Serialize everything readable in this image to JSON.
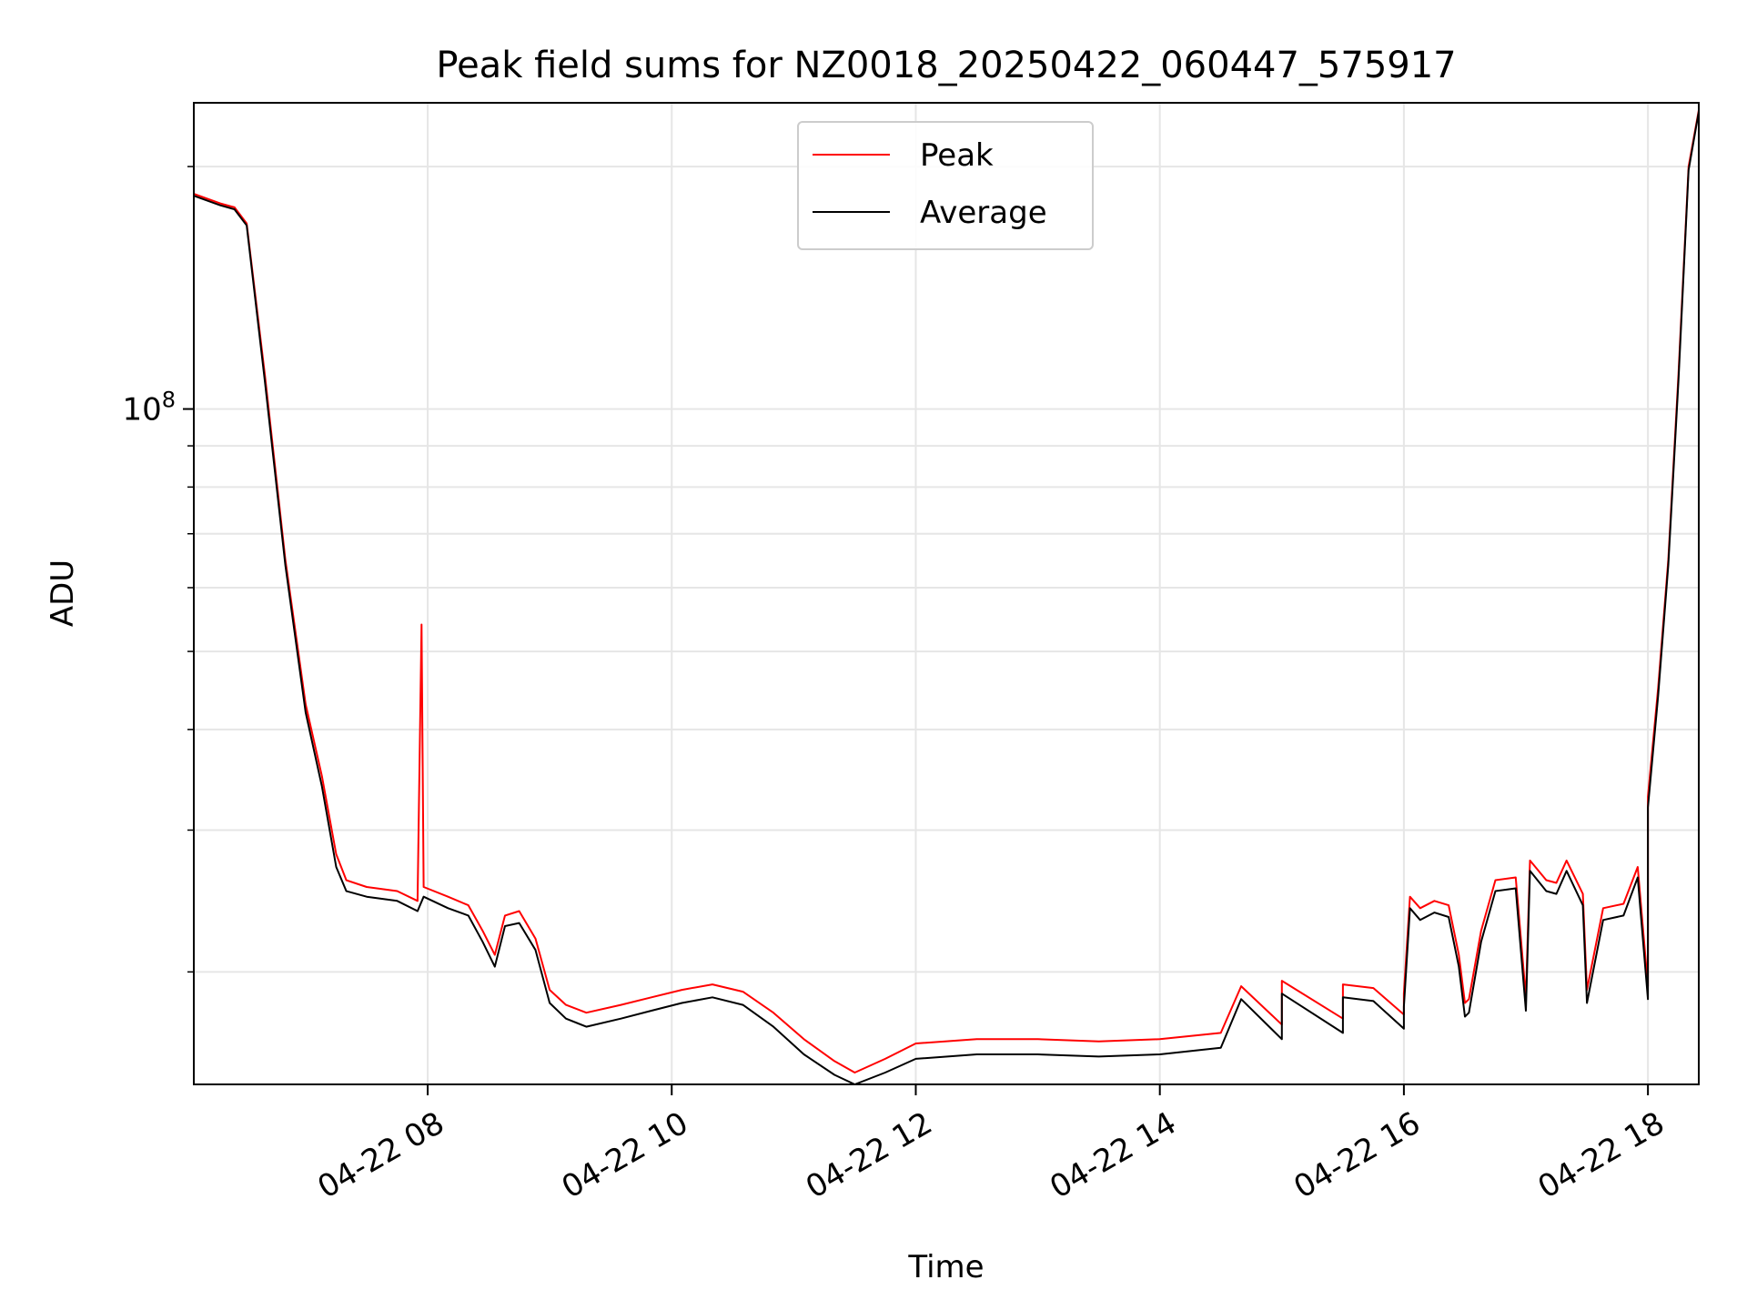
{
  "chart_data": {
    "type": "line",
    "title": "Peak field sums for NZ0018_20250422_060447_575917",
    "xlabel": "Time",
    "ylabel": "ADU",
    "y_scale": "log",
    "ylim": [
      14500000,
      240000000
    ],
    "xlim": [
      "2025-04-22 06:05",
      "2025-04-22 18:25"
    ],
    "x_ticks": [
      {
        "t": "2025-04-22 08:00",
        "label": "04-22 08"
      },
      {
        "t": "2025-04-22 10:00",
        "label": "04-22 10"
      },
      {
        "t": "2025-04-22 12:00",
        "label": "04-22 12"
      },
      {
        "t": "2025-04-22 14:00",
        "label": "04-22 14"
      },
      {
        "t": "2025-04-22 16:00",
        "label": "04-22 16"
      },
      {
        "t": "2025-04-22 18:00",
        "label": "04-22 18"
      }
    ],
    "y_major_tick": {
      "value": 100000000,
      "label_base": "10",
      "label_exp": "8"
    },
    "y_minor_ticks": [
      20000000,
      30000000,
      40000000,
      50000000,
      60000000,
      70000000,
      80000000,
      90000000,
      200000000
    ],
    "grid": true,
    "legend_position": "top-center",
    "legend": [
      "Peak",
      "Average"
    ],
    "series": [
      {
        "name": "Peak",
        "color": "#ff0000",
        "points": [
          [
            "2025-04-22 06:05",
            185000000
          ],
          [
            "2025-04-22 06:18",
            180000000
          ],
          [
            "2025-04-22 06:25",
            178000000
          ],
          [
            "2025-04-22 06:31",
            170000000
          ],
          [
            "2025-04-22 06:40",
            110000000
          ],
          [
            "2025-04-22 06:50",
            65000000
          ],
          [
            "2025-04-22 07:00",
            43000000
          ],
          [
            "2025-04-22 07:08",
            35000000
          ],
          [
            "2025-04-22 07:15",
            28000000
          ],
          [
            "2025-04-22 07:20",
            26000000
          ],
          [
            "2025-04-22 07:30",
            25500000
          ],
          [
            "2025-04-22 07:45",
            25200000
          ],
          [
            "2025-04-22 07:55",
            24500000
          ],
          [
            "2025-04-22 07:57",
            54000000
          ],
          [
            "2025-04-22 07:58",
            25500000
          ],
          [
            "2025-04-22 08:10",
            24800000
          ],
          [
            "2025-04-22 08:20",
            24200000
          ],
          [
            "2025-04-22 08:27",
            22500000
          ],
          [
            "2025-04-22 08:33",
            21000000
          ],
          [
            "2025-04-22 08:38",
            23500000
          ],
          [
            "2025-04-22 08:45",
            23800000
          ],
          [
            "2025-04-22 08:53",
            22000000
          ],
          [
            "2025-04-22 09:00",
            19000000
          ],
          [
            "2025-04-22 09:08",
            18200000
          ],
          [
            "2025-04-22 09:18",
            17800000
          ],
          [
            "2025-04-22 09:35",
            18200000
          ],
          [
            "2025-04-22 09:50",
            18600000
          ],
          [
            "2025-04-22 10:05",
            19000000
          ],
          [
            "2025-04-22 10:20",
            19300000
          ],
          [
            "2025-04-22 10:35",
            18900000
          ],
          [
            "2025-04-22 10:50",
            17800000
          ],
          [
            "2025-04-22 11:05",
            16500000
          ],
          [
            "2025-04-22 11:20",
            15500000
          ],
          [
            "2025-04-22 11:30",
            15000000
          ],
          [
            "2025-04-22 11:45",
            15600000
          ],
          [
            "2025-04-22 12:00",
            16300000
          ],
          [
            "2025-04-22 12:30",
            16500000
          ],
          [
            "2025-04-22 13:00",
            16500000
          ],
          [
            "2025-04-22 13:30",
            16400000
          ],
          [
            "2025-04-22 14:00",
            16500000
          ],
          [
            "2025-04-22 14:30",
            16800000
          ],
          [
            "2025-04-22 15:00",
            17200000
          ],
          [
            "2025-04-22 15:30",
            17500000
          ],
          [
            "2025-04-22 16:00",
            17700000
          ],
          [
            "2025-04-22 16:30",
            18300000
          ],
          [
            "2025-04-22 17:00",
            18600000
          ],
          [
            "2025-04-22 17:30",
            19000000
          ],
          [
            "2025-04-22 18:00",
            19200000
          ],
          [
            "2025-04-22 14:40",
            19200000
          ],
          [
            "2025-04-22 15:00",
            19500000
          ],
          [
            "2025-04-22 15:30",
            19300000
          ],
          [
            "2025-04-22 15:45",
            19100000
          ],
          [
            "2025-04-22 16:00",
            18800000
          ],
          [
            "2025-04-22 16:03",
            24800000
          ],
          [
            "2025-04-22 16:08",
            24000000
          ],
          [
            "2025-04-22 16:15",
            24500000
          ],
          [
            "2025-04-22 16:22",
            24200000
          ],
          [
            "2025-04-22 16:27",
            21000000
          ],
          [
            "2025-04-22 16:32",
            18500000
          ],
          [
            "2025-04-22 16:38",
            22500000
          ],
          [
            "2025-04-22 16:45",
            26000000
          ],
          [
            "2025-04-22 16:55",
            26200000
          ],
          [
            "2025-04-22 17:02",
            27500000
          ],
          [
            "2025-04-22 17:10",
            26000000
          ],
          [
            "2025-04-22 17:15",
            25800000
          ],
          [
            "2025-04-22 17:20",
            27500000
          ],
          [
            "2025-04-22 17:28",
            25000000
          ],
          [
            "2025-04-22 17:38",
            24000000
          ],
          [
            "2025-04-22 17:48",
            24300000
          ],
          [
            "2025-04-22 17:55",
            27000000
          ],
          [
            "2025-04-22 18:00",
            33000000
          ],
          [
            "2025-04-22 18:05",
            45000000
          ],
          [
            "2025-04-22 18:10",
            65000000
          ],
          [
            "2025-04-22 18:15",
            110000000
          ],
          [
            "2025-04-22 18:20",
            200000000
          ],
          [
            "2025-04-22 18:25",
            235000000
          ]
        ]
      },
      {
        "name": "Average",
        "color": "#000000",
        "points": [
          [
            "2025-04-22 06:05",
            184000000
          ],
          [
            "2025-04-22 06:18",
            179000000
          ],
          [
            "2025-04-22 06:25",
            177000000
          ],
          [
            "2025-04-22 06:31",
            169000000
          ],
          [
            "2025-04-22 06:40",
            108000000
          ],
          [
            "2025-04-22 06:50",
            64000000
          ],
          [
            "2025-04-22 07:00",
            42000000
          ],
          [
            "2025-04-22 07:08",
            34000000
          ],
          [
            "2025-04-22 07:15",
            27000000
          ],
          [
            "2025-04-22 07:20",
            25200000
          ],
          [
            "2025-04-22 07:30",
            24800000
          ],
          [
            "2025-04-22 07:45",
            24500000
          ],
          [
            "2025-04-22 07:55",
            23800000
          ],
          [
            "2025-04-22 07:58",
            24800000
          ],
          [
            "2025-04-22 08:10",
            24000000
          ],
          [
            "2025-04-22 08:20",
            23500000
          ],
          [
            "2025-04-22 08:27",
            21800000
          ],
          [
            "2025-04-22 08:33",
            20300000
          ],
          [
            "2025-04-22 08:38",
            22800000
          ],
          [
            "2025-04-22 08:45",
            23000000
          ],
          [
            "2025-04-22 08:53",
            21300000
          ],
          [
            "2025-04-22 09:00",
            18300000
          ],
          [
            "2025-04-22 09:08",
            17500000
          ],
          [
            "2025-04-22 09:18",
            17100000
          ],
          [
            "2025-04-22 09:35",
            17500000
          ],
          [
            "2025-04-22 09:50",
            17900000
          ],
          [
            "2025-04-22 10:05",
            18300000
          ],
          [
            "2025-04-22 10:20",
            18600000
          ],
          [
            "2025-04-22 10:35",
            18200000
          ],
          [
            "2025-04-22 10:50",
            17100000
          ],
          [
            "2025-04-22 11:05",
            15800000
          ],
          [
            "2025-04-22 11:20",
            14900000
          ],
          [
            "2025-04-22 11:30",
            14500000
          ],
          [
            "2025-04-22 11:45",
            15000000
          ],
          [
            "2025-04-22 12:00",
            15600000
          ],
          [
            "2025-04-22 12:30",
            15800000
          ],
          [
            "2025-04-22 13:00",
            15800000
          ],
          [
            "2025-04-22 13:30",
            15700000
          ],
          [
            "2025-04-22 14:00",
            15800000
          ],
          [
            "2025-04-22 14:30",
            16100000
          ],
          [
            "2025-04-22 15:00",
            16500000
          ],
          [
            "2025-04-22 15:30",
            16800000
          ],
          [
            "2025-04-22 16:00",
            17000000
          ],
          [
            "2025-04-22 16:30",
            17600000
          ],
          [
            "2025-04-22 17:00",
            17900000
          ],
          [
            "2025-04-22 17:30",
            18300000
          ],
          [
            "2025-04-22 18:00",
            18500000
          ],
          [
            "2025-04-22 14:40",
            18500000
          ],
          [
            "2025-04-22 15:00",
            18800000
          ],
          [
            "2025-04-22 15:30",
            18600000
          ],
          [
            "2025-04-22 15:45",
            18400000
          ],
          [
            "2025-04-22 16:00",
            18100000
          ],
          [
            "2025-04-22 16:03",
            24000000
          ],
          [
            "2025-04-22 16:08",
            23200000
          ],
          [
            "2025-04-22 16:15",
            23700000
          ],
          [
            "2025-04-22 16:22",
            23400000
          ],
          [
            "2025-04-22 16:27",
            20300000
          ],
          [
            "2025-04-22 16:32",
            17800000
          ],
          [
            "2025-04-22 16:38",
            21800000
          ],
          [
            "2025-04-22 16:45",
            25200000
          ],
          [
            "2025-04-22 16:55",
            25400000
          ],
          [
            "2025-04-22 17:02",
            26700000
          ],
          [
            "2025-04-22 17:10",
            25200000
          ],
          [
            "2025-04-22 17:15",
            25000000
          ],
          [
            "2025-04-22 17:20",
            26700000
          ],
          [
            "2025-04-22 17:28",
            24200000
          ],
          [
            "2025-04-22 17:38",
            23200000
          ],
          [
            "2025-04-22 17:48",
            23500000
          ],
          [
            "2025-04-22 17:55",
            26200000
          ],
          [
            "2025-04-22 18:00",
            32000000
          ],
          [
            "2025-04-22 18:05",
            44000000
          ],
          [
            "2025-04-22 18:10",
            64000000
          ],
          [
            "2025-04-22 18:15",
            108000000
          ],
          [
            "2025-04-22 18:20",
            198000000
          ],
          [
            "2025-04-22 18:25",
            234000000
          ]
        ]
      }
    ]
  }
}
